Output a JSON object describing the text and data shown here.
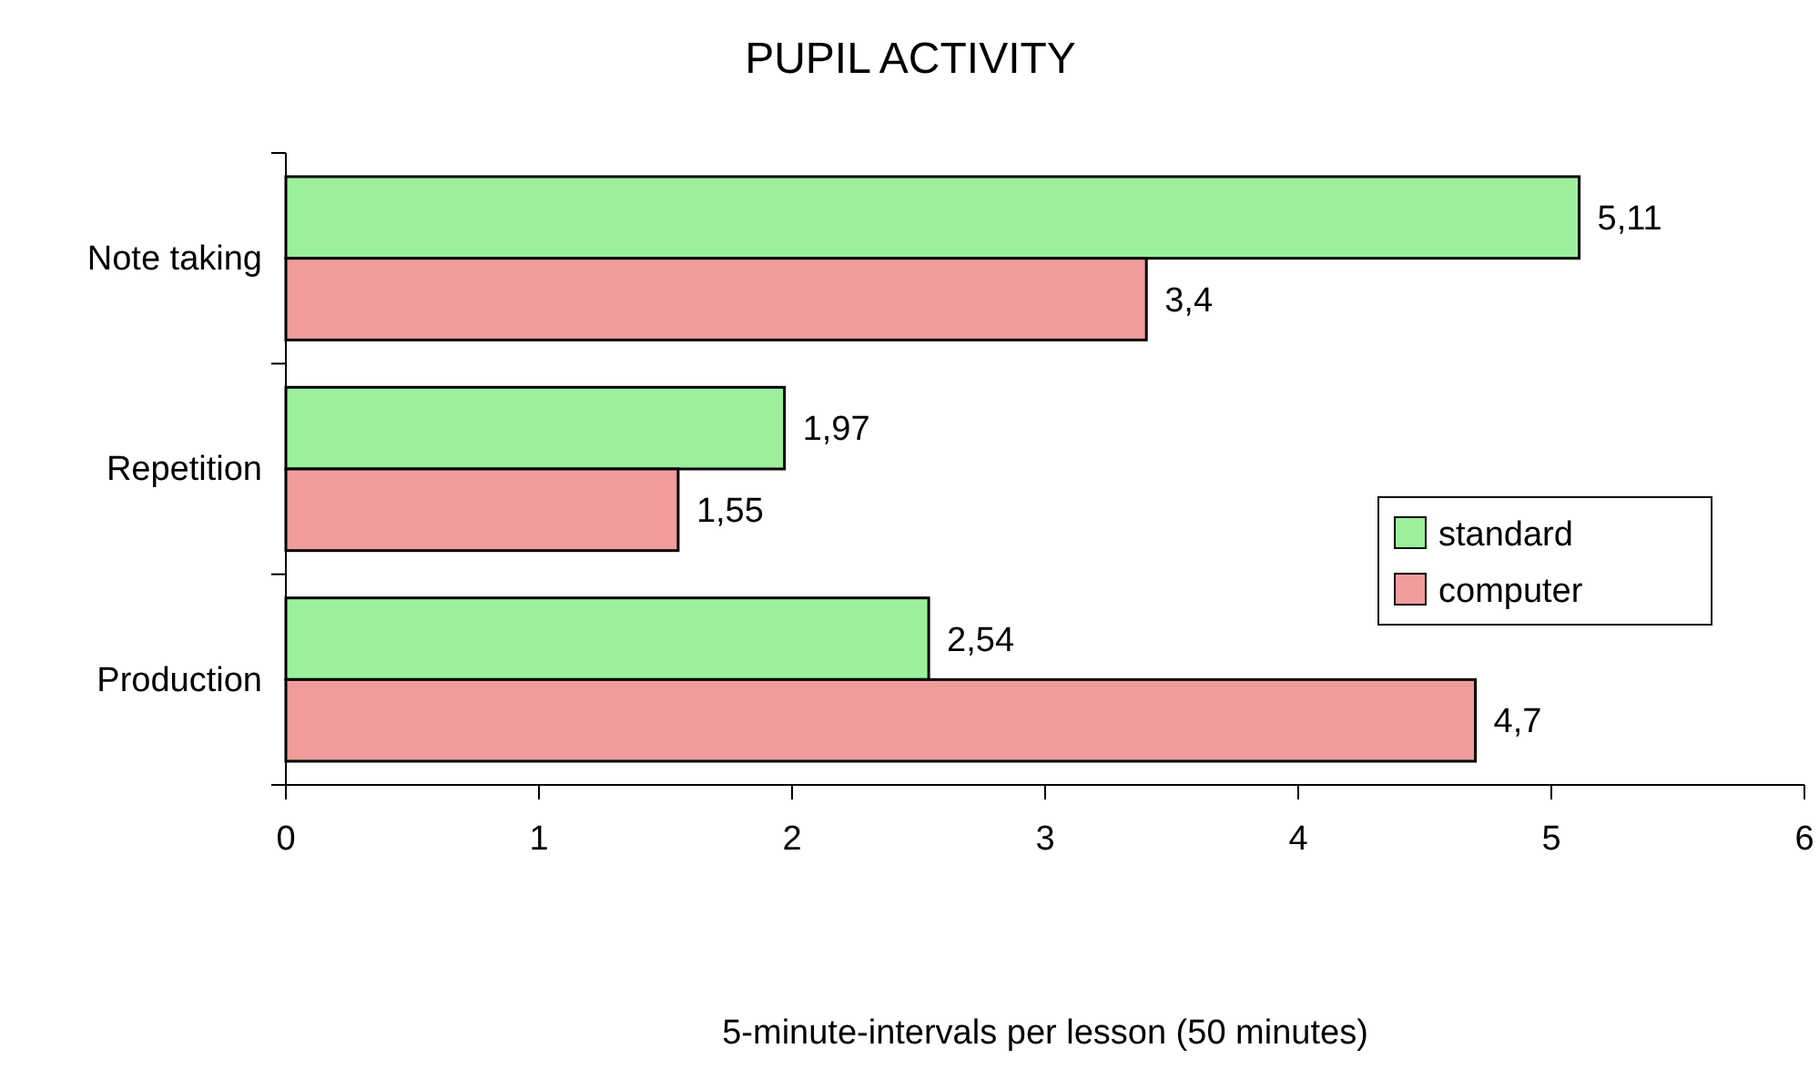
{
  "chart_data": {
    "type": "bar",
    "orientation": "horizontal",
    "title": "PUPIL ACTIVITY",
    "xlabel": "5-minute-intervals per lesson (50 minutes)",
    "categories": [
      "Note taking",
      "Repetition",
      "Production"
    ],
    "series": [
      {
        "name": "standard",
        "color": "#9cf09c",
        "values": [
          5.11,
          1.97,
          2.54
        ],
        "value_labels": [
          "5,11",
          "1,97",
          "2,54"
        ]
      },
      {
        "name": "computer",
        "color": "#f09c9c",
        "values": [
          3.4,
          1.55,
          4.7
        ],
        "value_labels": [
          "3,4",
          "1,55",
          "4,7"
        ]
      }
    ],
    "xlim": [
      0,
      6
    ],
    "xticks": [
      0,
      1,
      2,
      3,
      4,
      5,
      6
    ],
    "legend": "right",
    "grid": false
  }
}
